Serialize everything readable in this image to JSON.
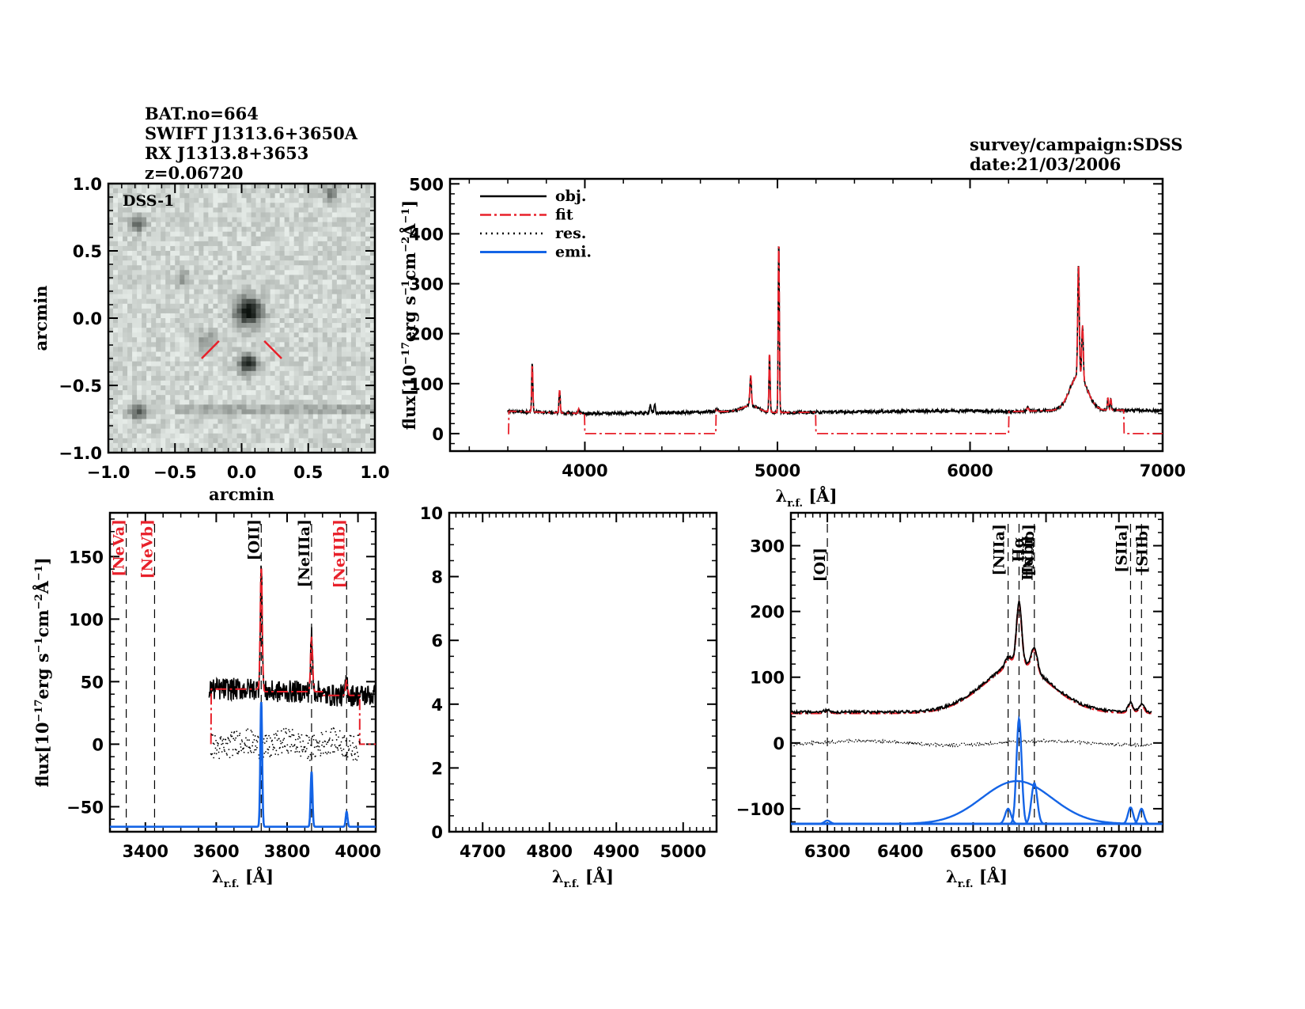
{
  "header": {
    "left_lines": [
      "BAT.no=664",
      "SWIFT J1313.6+3650A",
      "RX J1313.8+3653",
      "z=0.06720"
    ],
    "right_lines": [
      "survey/campaign:SDSS",
      "date:21/03/2006"
    ]
  },
  "colors": {
    "obj": "#000000",
    "fit": "#e8202a",
    "res": "#000000",
    "emi": "#1464e6",
    "marker": "#e8202a",
    "label_red": "#e8202a",
    "label_black": "#000000"
  },
  "chart_data": [
    {
      "id": "dss_image",
      "type": "heatmap",
      "title": "DSS-1",
      "xlabel": "arcmin",
      "ylabel": "arcmin",
      "xlim": [
        -1.0,
        1.0
      ],
      "ylim": [
        -1.0,
        1.0
      ],
      "xticks": [
        -1.0,
        -0.5,
        0.0,
        0.5,
        1.0
      ],
      "yticks": [
        -1.0,
        -0.5,
        0.0,
        0.5,
        1.0
      ],
      "xtick_labels": [
        "−1.0",
        "−0.5",
        "0.0",
        "0.5",
        "1.0"
      ],
      "ytick_labels": [
        "−1.0",
        "−0.5",
        "0.0",
        "0.5",
        "1.0"
      ],
      "sources": [
        {
          "x": 0.05,
          "y": 0.05,
          "strength": 1.0,
          "size": 0.07
        },
        {
          "x": 0.05,
          "y": -0.34,
          "strength": 0.85,
          "size": 0.05
        },
        {
          "x": -0.78,
          "y": 0.7,
          "strength": 0.5,
          "size": 0.04
        },
        {
          "x": -0.78,
          "y": -0.7,
          "strength": 0.6,
          "size": 0.04
        },
        {
          "x": 0.67,
          "y": 0.93,
          "strength": 0.4,
          "size": 0.04
        },
        {
          "x": -0.27,
          "y": -0.17,
          "strength": 0.35,
          "size": 0.05
        },
        {
          "x": -0.45,
          "y": 0.3,
          "strength": 0.3,
          "size": 0.04
        }
      ],
      "streak_y": -0.68,
      "markers": [
        {
          "x1": -0.3,
          "y1": -0.3,
          "x2": -0.17,
          "y2": -0.17
        },
        {
          "x1": 0.17,
          "y1": -0.17,
          "x2": 0.3,
          "y2": -0.3
        }
      ]
    },
    {
      "id": "full_spectrum",
      "type": "line",
      "xlabel": "λ_r.f. [Å]",
      "ylabel": "flux[10^-17 erg s^-1 cm^-2 Å^-1]",
      "xlim": [
        3300,
        7000
      ],
      "ylim": [
        -35,
        510
      ],
      "xticks": [
        4000,
        5000,
        6000,
        7000
      ],
      "yticks": [
        0,
        100,
        200,
        300,
        400,
        500
      ],
      "legend": {
        "position": "top-left",
        "entries": [
          {
            "label": "obj.",
            "style": "solid",
            "color_key": "obj"
          },
          {
            "label": "fit",
            "style": "dashdot",
            "color_key": "fit"
          },
          {
            "label": "res.",
            "style": "dotted",
            "color_key": "res"
          },
          {
            "label": "emi.",
            "style": "solid",
            "color_key": "emi"
          }
        ]
      },
      "continuum": {
        "x": [
          3600,
          4000,
          4500,
          4800,
          5000,
          5500,
          6000,
          6200,
          6400,
          6800,
          7000
        ],
        "y": [
          45,
          40,
          42,
          45,
          42,
          44,
          46,
          44,
          46,
          47,
          46
        ]
      },
      "lines": [
        {
          "center": 3727,
          "peak": 143,
          "sigma": 3
        },
        {
          "center": 3869,
          "peak": 88,
          "sigma": 3
        },
        {
          "center": 3968,
          "peak": 50,
          "sigma": 3
        },
        {
          "center": 4340,
          "peak": 58,
          "sigma": 4
        },
        {
          "center": 4363,
          "peak": 60,
          "sigma": 3
        },
        {
          "center": 4686,
          "peak": 50,
          "sigma": 5
        },
        {
          "center": 4861,
          "peak": 105,
          "sigma": 4
        },
        {
          "center": 4959,
          "peak": 162,
          "sigma": 3
        },
        {
          "center": 5007,
          "peak": 392,
          "sigma": 3
        },
        {
          "center": 6300,
          "peak": 55,
          "sigma": 4
        },
        {
          "center": 6563,
          "peak": 270,
          "sigma": 4
        },
        {
          "center": 6584,
          "peak": 155,
          "sigma": 4
        },
        {
          "center": 6716,
          "peak": 72,
          "sigma": 3
        },
        {
          "center": 6731,
          "peak": 70,
          "sigma": 3
        }
      ],
      "broad_lines": [
        {
          "center": 6563,
          "peak": 70,
          "sigma": 45
        },
        {
          "center": 4861,
          "peak": 12,
          "sigma": 40
        }
      ],
      "fit_windows_zero": [
        [
          3600,
          3605
        ],
        [
          4000,
          4680
        ],
        [
          5200,
          6200
        ],
        [
          6800,
          7000
        ]
      ]
    },
    {
      "id": "blue_zoom",
      "type": "line",
      "xlabel": "λ_r.f. [Å]",
      "ylabel": "flux[10^-17 erg s^-1 cm^-2 Å^-1]",
      "xlim": [
        3300,
        4050
      ],
      "ylim": [
        -70,
        185
      ],
      "xticks": [
        3400,
        3600,
        3800,
        4000
      ],
      "yticks": [
        -50,
        0,
        50,
        100,
        150
      ],
      "data_range": [
        3580,
        4050
      ],
      "fit_range": [
        3585,
        4005
      ],
      "emi_offset": -66,
      "lines": [
        {
          "label": "[NeVa]",
          "center": 3346,
          "color_key": "label_red",
          "peak": 0
        },
        {
          "label": "[NeVb]",
          "center": 3426,
          "color_key": "label_red",
          "peak": 0
        },
        {
          "label": "[OII]",
          "center": 3727,
          "color_key": "label_black",
          "peak": 100
        },
        {
          "label": "[NeIIIa]",
          "center": 3869,
          "color_key": "label_black",
          "peak": 44
        },
        {
          "label": "[NeIIIb]",
          "center": 3968,
          "color_key": "label_red",
          "peak": 12
        }
      ],
      "continuum_level": 42
    },
    {
      "id": "hbeta_zoom",
      "type": "line",
      "xlabel": "λ_r.f. [Å]",
      "ylabel": "",
      "xlim": [
        4650,
        5050
      ],
      "ylim": [
        0,
        10
      ],
      "xticks": [
        4700,
        4800,
        4900,
        5000
      ],
      "yticks": [
        0,
        2,
        4,
        6,
        8,
        10
      ],
      "series": []
    },
    {
      "id": "halpha_zoom",
      "type": "line",
      "xlabel": "λ_r.f. [Å]",
      "ylabel": "",
      "xlim": [
        6250,
        6760
      ],
      "ylim": [
        -135,
        350
      ],
      "xticks": [
        6300,
        6400,
        6500,
        6600,
        6700
      ],
      "yticks": [
        -100,
        0,
        100,
        200,
        300
      ],
      "emi_offset": -123,
      "lines": [
        {
          "label": "[OI]",
          "center": 6300,
          "color_key": "label_black",
          "peak": 5,
          "sigma": 4
        },
        {
          "label": "[NIIa]",
          "center": 6548,
          "color_key": "label_black",
          "peak": 23,
          "sigma": 4
        },
        {
          "label": "Hα",
          "center": 6563,
          "color_key": "label_black",
          "peak": 160,
          "sigma": 3.5
        },
        {
          "label": "Hαbr",
          "center": 6563,
          "color_key": "label_black",
          "peak": 0,
          "sigma": 0
        },
        {
          "label": "[NIIb]",
          "center": 6584,
          "color_key": "label_black",
          "peak": 62,
          "sigma": 4
        },
        {
          "label": "[SIIa]",
          "center": 6716,
          "color_key": "label_black",
          "peak": 25,
          "sigma": 3.5
        },
        {
          "label": "[SIIb]",
          "center": 6731,
          "color_key": "label_black",
          "peak": 23,
          "sigma": 3.5
        }
      ],
      "broad": {
        "center": 6560,
        "peak": 65,
        "sigma": 48
      },
      "continuum_level": 47
    }
  ]
}
